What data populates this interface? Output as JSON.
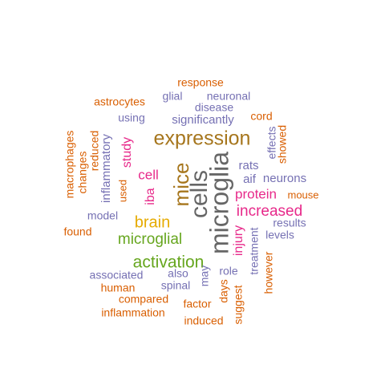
{
  "colors": {
    "orange": "#D95F02",
    "purple": "#7570B3",
    "magenta": "#E7298A",
    "green": "#66A61E",
    "gold": "#E6AB02",
    "brown": "#A6761D",
    "gray": "#666666"
  },
  "words": [
    {
      "text": "microglia",
      "color": "gray"
    },
    {
      "text": "cells",
      "color": "gray"
    },
    {
      "text": "expression",
      "color": "brown"
    },
    {
      "text": "mice",
      "color": "brown"
    },
    {
      "text": "activation",
      "color": "green"
    },
    {
      "text": "microglial",
      "color": "green"
    },
    {
      "text": "brain",
      "color": "gold"
    },
    {
      "text": "increased",
      "color": "magenta"
    },
    {
      "text": "protein",
      "color": "magenta"
    },
    {
      "text": "cell",
      "color": "magenta"
    },
    {
      "text": "injury",
      "color": "magenta"
    },
    {
      "text": "iba",
      "color": "magenta"
    },
    {
      "text": "study",
      "color": "magenta"
    },
    {
      "text": "significantly",
      "color": "purple"
    },
    {
      "text": "inflammatory",
      "color": "purple"
    },
    {
      "text": "neurons",
      "color": "purple"
    },
    {
      "text": "aif",
      "color": "purple"
    },
    {
      "text": "rats",
      "color": "purple"
    },
    {
      "text": "results",
      "color": "purple"
    },
    {
      "text": "levels",
      "color": "purple"
    },
    {
      "text": "treatment",
      "color": "purple"
    },
    {
      "text": "model",
      "color": "purple"
    },
    {
      "text": "associated",
      "color": "purple"
    },
    {
      "text": "also",
      "color": "purple"
    },
    {
      "text": "spinal",
      "color": "purple"
    },
    {
      "text": "role",
      "color": "purple"
    },
    {
      "text": "may",
      "color": "purple"
    },
    {
      "text": "disease",
      "color": "purple"
    },
    {
      "text": "neuronal",
      "color": "purple"
    },
    {
      "text": "glial",
      "color": "purple"
    },
    {
      "text": "using",
      "color": "purple"
    },
    {
      "text": "effects",
      "color": "purple"
    },
    {
      "text": "response",
      "color": "orange"
    },
    {
      "text": "astrocytes",
      "color": "orange"
    },
    {
      "text": "cord",
      "color": "orange"
    },
    {
      "text": "showed",
      "color": "orange"
    },
    {
      "text": "mouse",
      "color": "orange"
    },
    {
      "text": "macrophages",
      "color": "orange"
    },
    {
      "text": "changes",
      "color": "orange"
    },
    {
      "text": "reduced",
      "color": "orange"
    },
    {
      "text": "used",
      "color": "orange"
    },
    {
      "text": "found",
      "color": "orange"
    },
    {
      "text": "human",
      "color": "orange"
    },
    {
      "text": "compared",
      "color": "orange"
    },
    {
      "text": "inflammation",
      "color": "orange"
    },
    {
      "text": "factor",
      "color": "orange"
    },
    {
      "text": "induced",
      "color": "orange"
    },
    {
      "text": "days",
      "color": "orange"
    },
    {
      "text": "suggest",
      "color": "orange"
    },
    {
      "text": "however",
      "color": "orange"
    }
  ]
}
